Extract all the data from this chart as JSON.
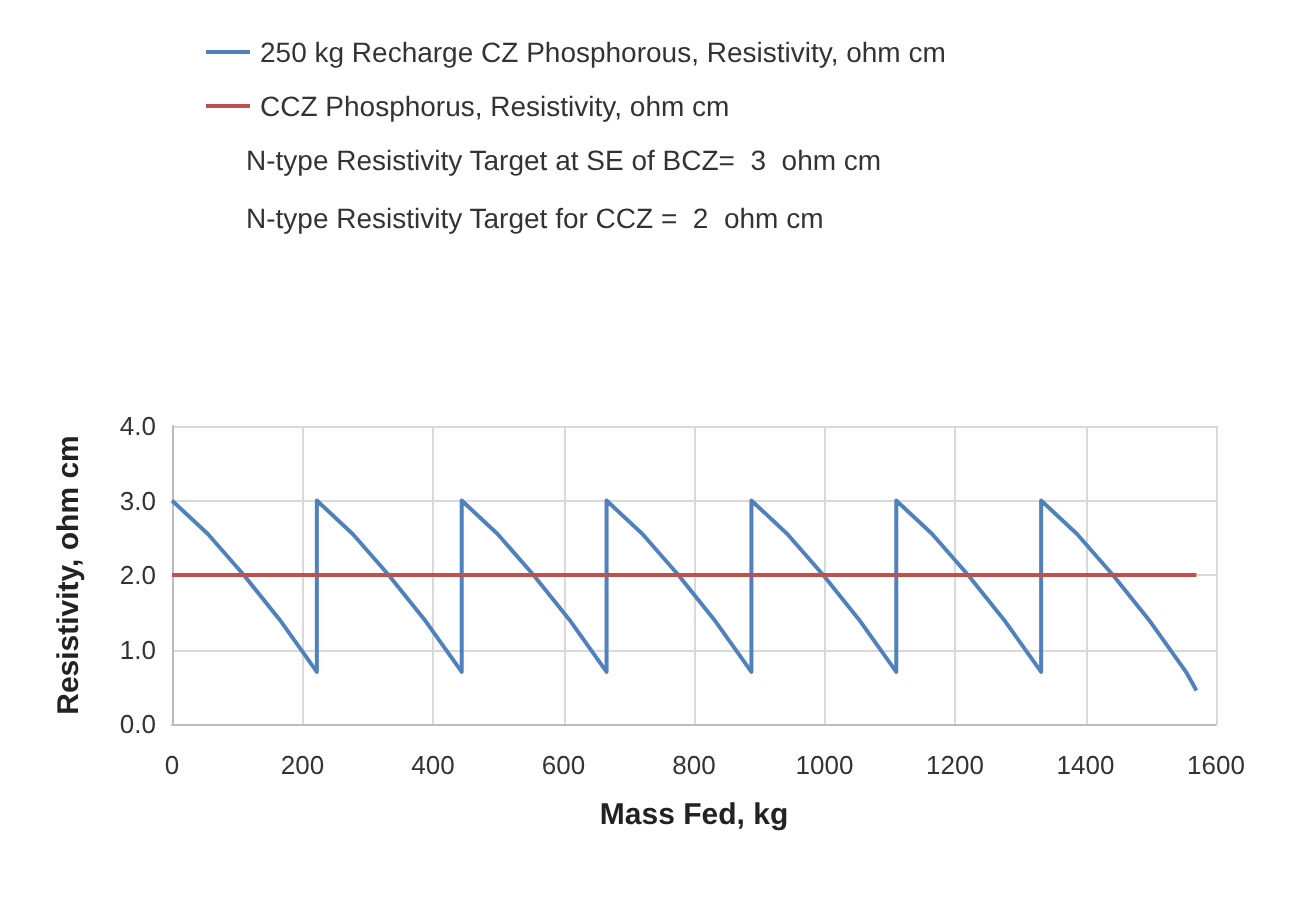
{
  "chart_data": {
    "type": "line",
    "xlabel": "Mass Fed, kg",
    "ylabel": "Resistivity, ohm cm",
    "annotations": [
      "N-type Resistivity Target at SE of BCZ=  3  ohm cm",
      "N-type Resistivity Target for CCZ =  2  ohm cm"
    ],
    "series": [
      {
        "name": "250 kg Recharge CZ Phosphorous, Resistivity, ohm cm",
        "color": "#4f81bd",
        "x": [
          0,
          55,
          110,
          165,
          222,
          222,
          277,
          332,
          387,
          444,
          444,
          499,
          554,
          609,
          666,
          666,
          721,
          776,
          831,
          888,
          888,
          943,
          998,
          1053,
          1110,
          1110,
          1165,
          1220,
          1275,
          1332,
          1332,
          1387,
          1442,
          1497,
          1554,
          1570
        ],
        "values": [
          3.0,
          2.55,
          2.0,
          1.4,
          0.7,
          3.0,
          2.55,
          2.0,
          1.4,
          0.7,
          3.0,
          2.55,
          2.0,
          1.4,
          0.7,
          3.0,
          2.55,
          2.0,
          1.4,
          0.7,
          3.0,
          2.55,
          2.0,
          1.4,
          0.7,
          3.0,
          2.55,
          2.0,
          1.4,
          0.7,
          3.0,
          2.55,
          2.0,
          1.4,
          0.7,
          0.45
        ]
      },
      {
        "name": "CCZ Phosphorus, Resistivity, ohm cm",
        "color": "#c0504d",
        "x": [
          0,
          1570
        ],
        "values": [
          2.0,
          2.0
        ]
      }
    ],
    "xlim": [
      0,
      1600
    ],
    "xticks": [
      0,
      200,
      400,
      600,
      800,
      1000,
      1200,
      1400,
      1600
    ],
    "ylim": [
      0,
      4
    ],
    "yticks": [
      {
        "value": 0,
        "label": "0.0"
      },
      {
        "value": 1,
        "label": "1.0"
      },
      {
        "value": 2,
        "label": "2.0"
      },
      {
        "value": 3,
        "label": "3.0"
      },
      {
        "value": 4,
        "label": "4.0"
      }
    ],
    "grid": true,
    "legend": "top",
    "marker": "none",
    "line_style": "solid"
  }
}
